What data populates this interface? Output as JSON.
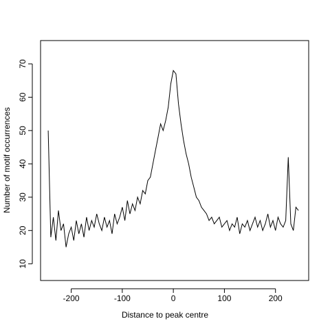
{
  "chart_data": {
    "type": "line",
    "title": "",
    "xlabel": "Distance to peak centre",
    "ylabel": "Number of motif occurrences",
    "xlim": [
      -260,
      265
    ],
    "ylim": [
      5,
      77
    ],
    "xticks": [
      -200,
      -100,
      0,
      100,
      200
    ],
    "yticks": [
      10,
      20,
      30,
      40,
      50,
      60,
      70
    ],
    "grid": false,
    "line_color": "#000000",
    "x": [
      -245,
      -240,
      -235,
      -230,
      -225,
      -220,
      -215,
      -210,
      -205,
      -200,
      -195,
      -190,
      -185,
      -180,
      -175,
      -170,
      -165,
      -160,
      -155,
      -150,
      -145,
      -140,
      -135,
      -130,
      -125,
      -120,
      -115,
      -110,
      -105,
      -100,
      -95,
      -90,
      -85,
      -80,
      -75,
      -70,
      -65,
      -60,
      -55,
      -50,
      -45,
      -40,
      -35,
      -30,
      -25,
      -20,
      -15,
      -10,
      -5,
      0,
      5,
      10,
      15,
      20,
      25,
      30,
      35,
      40,
      45,
      50,
      55,
      60,
      65,
      70,
      75,
      80,
      85,
      90,
      95,
      100,
      105,
      110,
      115,
      120,
      125,
      130,
      135,
      140,
      145,
      150,
      155,
      160,
      165,
      170,
      175,
      180,
      185,
      190,
      195,
      200,
      205,
      210,
      215,
      220,
      225,
      230,
      235,
      240,
      245
    ],
    "y": [
      50,
      18,
      24,
      17,
      26,
      20,
      22,
      15,
      19,
      21,
      17,
      23,
      19,
      22,
      18,
      24,
      20,
      23,
      21,
      25,
      22,
      20,
      24,
      21,
      23,
      19,
      25,
      22,
      24,
      27,
      23,
      29,
      25,
      28,
      26,
      30,
      28,
      32,
      31,
      35,
      36,
      40,
      44,
      48,
      52,
      50,
      53,
      57,
      64,
      68,
      67,
      58,
      52,
      47,
      43,
      40,
      36,
      33,
      30,
      29,
      27,
      26,
      25,
      23,
      24,
      22,
      23,
      24,
      21,
      22,
      23,
      20,
      22,
      21,
      24,
      19,
      22,
      21,
      23,
      20,
      22,
      24,
      21,
      23,
      20,
      22,
      25,
      21,
      23,
      20,
      24,
      22,
      21,
      23,
      42,
      22,
      20,
      27,
      26
    ]
  }
}
